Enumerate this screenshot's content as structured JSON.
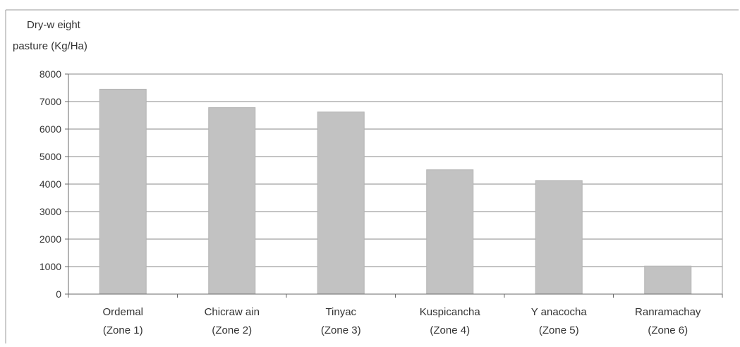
{
  "chart_data": {
    "type": "bar",
    "title": "",
    "ylabel_lines": [
      "Dry-w eight",
      "pasture (Kg/Ha)"
    ],
    "xlabel": "",
    "categories": [
      [
        "Ordemal",
        "(Zone 1)"
      ],
      [
        "Chicraw ain",
        "(Zone 2)"
      ],
      [
        "Tinyac",
        "(Zone 3)"
      ],
      [
        "Kuspicancha",
        "(Zone 4)"
      ],
      [
        "Y anacocha",
        "(Zone 5)"
      ],
      [
        "Ranramachay",
        "(Zone 6)"
      ]
    ],
    "values": [
      7450,
      6780,
      6620,
      4520,
      4130,
      1020
    ],
    "ylim": [
      0,
      8000
    ],
    "yticks": [
      "0",
      "1000",
      "2000",
      "3000",
      "4000",
      "5000",
      "6000",
      "7000",
      "8000"
    ],
    "grid": true,
    "legend": "none",
    "colors": {
      "bar": "#c2c2c2",
      "bar_edge": "#b4b4b4",
      "grid": "#8a8a8a",
      "axis": "#6a6a6a",
      "frame": "#9a9a9a"
    }
  }
}
